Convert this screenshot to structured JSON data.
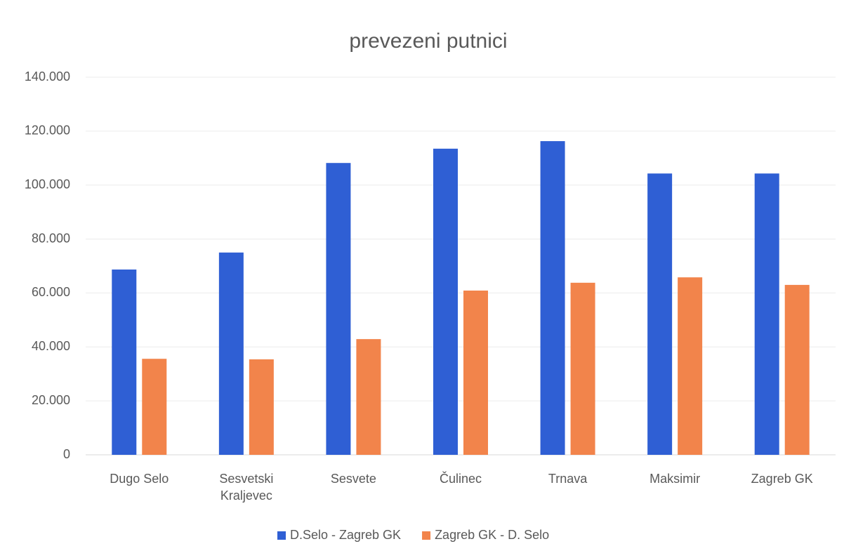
{
  "chart_data": {
    "type": "bar",
    "title": "prevezeni putnici",
    "categories": [
      "Dugo Selo",
      "Sesvetski Kraljevec",
      "Sesvete",
      "Čulinec",
      "Trnava",
      "Maksimir",
      "Zagreb GK"
    ],
    "series": [
      {
        "name": "D.Selo - Zagreb GK",
        "color": "#2f5fd4",
        "values": [
          68700,
          75000,
          108200,
          113500,
          116300,
          104300,
          104300
        ]
      },
      {
        "name": "Zagreb GK - D. Selo",
        "color": "#f2844b",
        "values": [
          35600,
          35400,
          42900,
          60900,
          63800,
          65800,
          63000
        ]
      }
    ],
    "ylim": [
      0,
      140000
    ],
    "yticks": [
      0,
      {
        "value": 20000,
        "label": "20.000"
      },
      {
        "value": 40000,
        "label": "40.000"
      },
      {
        "value": 60000,
        "label": "60.000"
      },
      {
        "value": 80000,
        "label": "80.000"
      },
      {
        "value": 100000,
        "label": "100.000"
      },
      {
        "value": 120000,
        "label": "120.000"
      },
      {
        "value": 140000,
        "label": "140.000"
      }
    ],
    "grid": true,
    "legend": "bottom"
  }
}
